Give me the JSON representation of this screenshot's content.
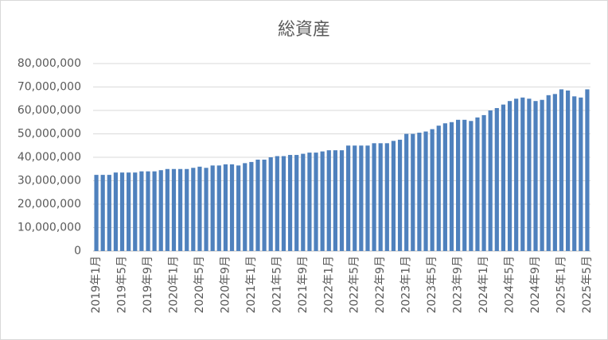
{
  "chart_data": {
    "type": "bar",
    "title": "総資産",
    "categories": [
      "2019年1月",
      null,
      null,
      null,
      "2019年5月",
      null,
      null,
      null,
      "2019年9月",
      null,
      null,
      null,
      "2020年1月",
      null,
      null,
      null,
      "2020年5月",
      null,
      null,
      null,
      "2020年9月",
      null,
      null,
      null,
      "2021年1月",
      null,
      null,
      null,
      "2021年5月",
      null,
      null,
      null,
      "2021年9月",
      null,
      null,
      null,
      "2022年1月",
      null,
      null,
      null,
      "2022年5月",
      null,
      null,
      null,
      "2022年9月",
      null,
      null,
      null,
      "2023年1月",
      null,
      null,
      null,
      "2023年5月",
      null,
      null,
      null,
      "2023年9月",
      null,
      null,
      null,
      "2024年1月",
      null,
      null,
      null,
      "2024年5月",
      null,
      null,
      null,
      "2024年9月",
      null,
      null,
      null,
      "2025年1月",
      null,
      null,
      null,
      "2025年5月"
    ],
    "values": [
      32500000,
      32500000,
      32500000,
      33500000,
      33500000,
      33500000,
      33500000,
      34000000,
      34000000,
      34000000,
      34500000,
      35000000,
      35000000,
      35000000,
      35000000,
      35500000,
      36000000,
      35500000,
      36500000,
      36500000,
      37000000,
      37000000,
      36500000,
      37500000,
      38000000,
      39000000,
      39000000,
      40000000,
      40500000,
      40500000,
      41000000,
      41000000,
      41500000,
      42000000,
      42000000,
      42500000,
      43000000,
      43000000,
      43000000,
      45000000,
      45000000,
      45000000,
      45000000,
      46000000,
      46000000,
      46000000,
      47000000,
      47500000,
      50000000,
      50000000,
      50500000,
      51000000,
      52000000,
      53500000,
      54500000,
      55000000,
      56000000,
      56000000,
      55500000,
      57000000,
      58000000,
      60000000,
      61000000,
      62500000,
      64000000,
      65000000,
      65500000,
      65000000,
      64000000,
      64500000,
      66500000,
      67000000,
      69000000,
      68500000,
      66000000,
      65500000,
      69000000
    ],
    "color": "#4f81bd",
    "ylim": [
      0,
      80000000
    ],
    "yticks": [
      0,
      {
        "value": 10000000,
        "label": "10,000,000"
      },
      {
        "value": 20000000,
        "label": "20,000,000"
      },
      {
        "value": 30000000,
        "label": "30,000,000"
      },
      {
        "value": 40000000,
        "label": "40,000,000"
      },
      {
        "value": 50000000,
        "label": "50,000,000"
      },
      {
        "value": 60000000,
        "label": "60,000,000"
      },
      {
        "value": 70000000,
        "label": "70,000,000"
      },
      {
        "value": 80000000,
        "label": "80,000,000"
      }
    ],
    "grid": true
  }
}
